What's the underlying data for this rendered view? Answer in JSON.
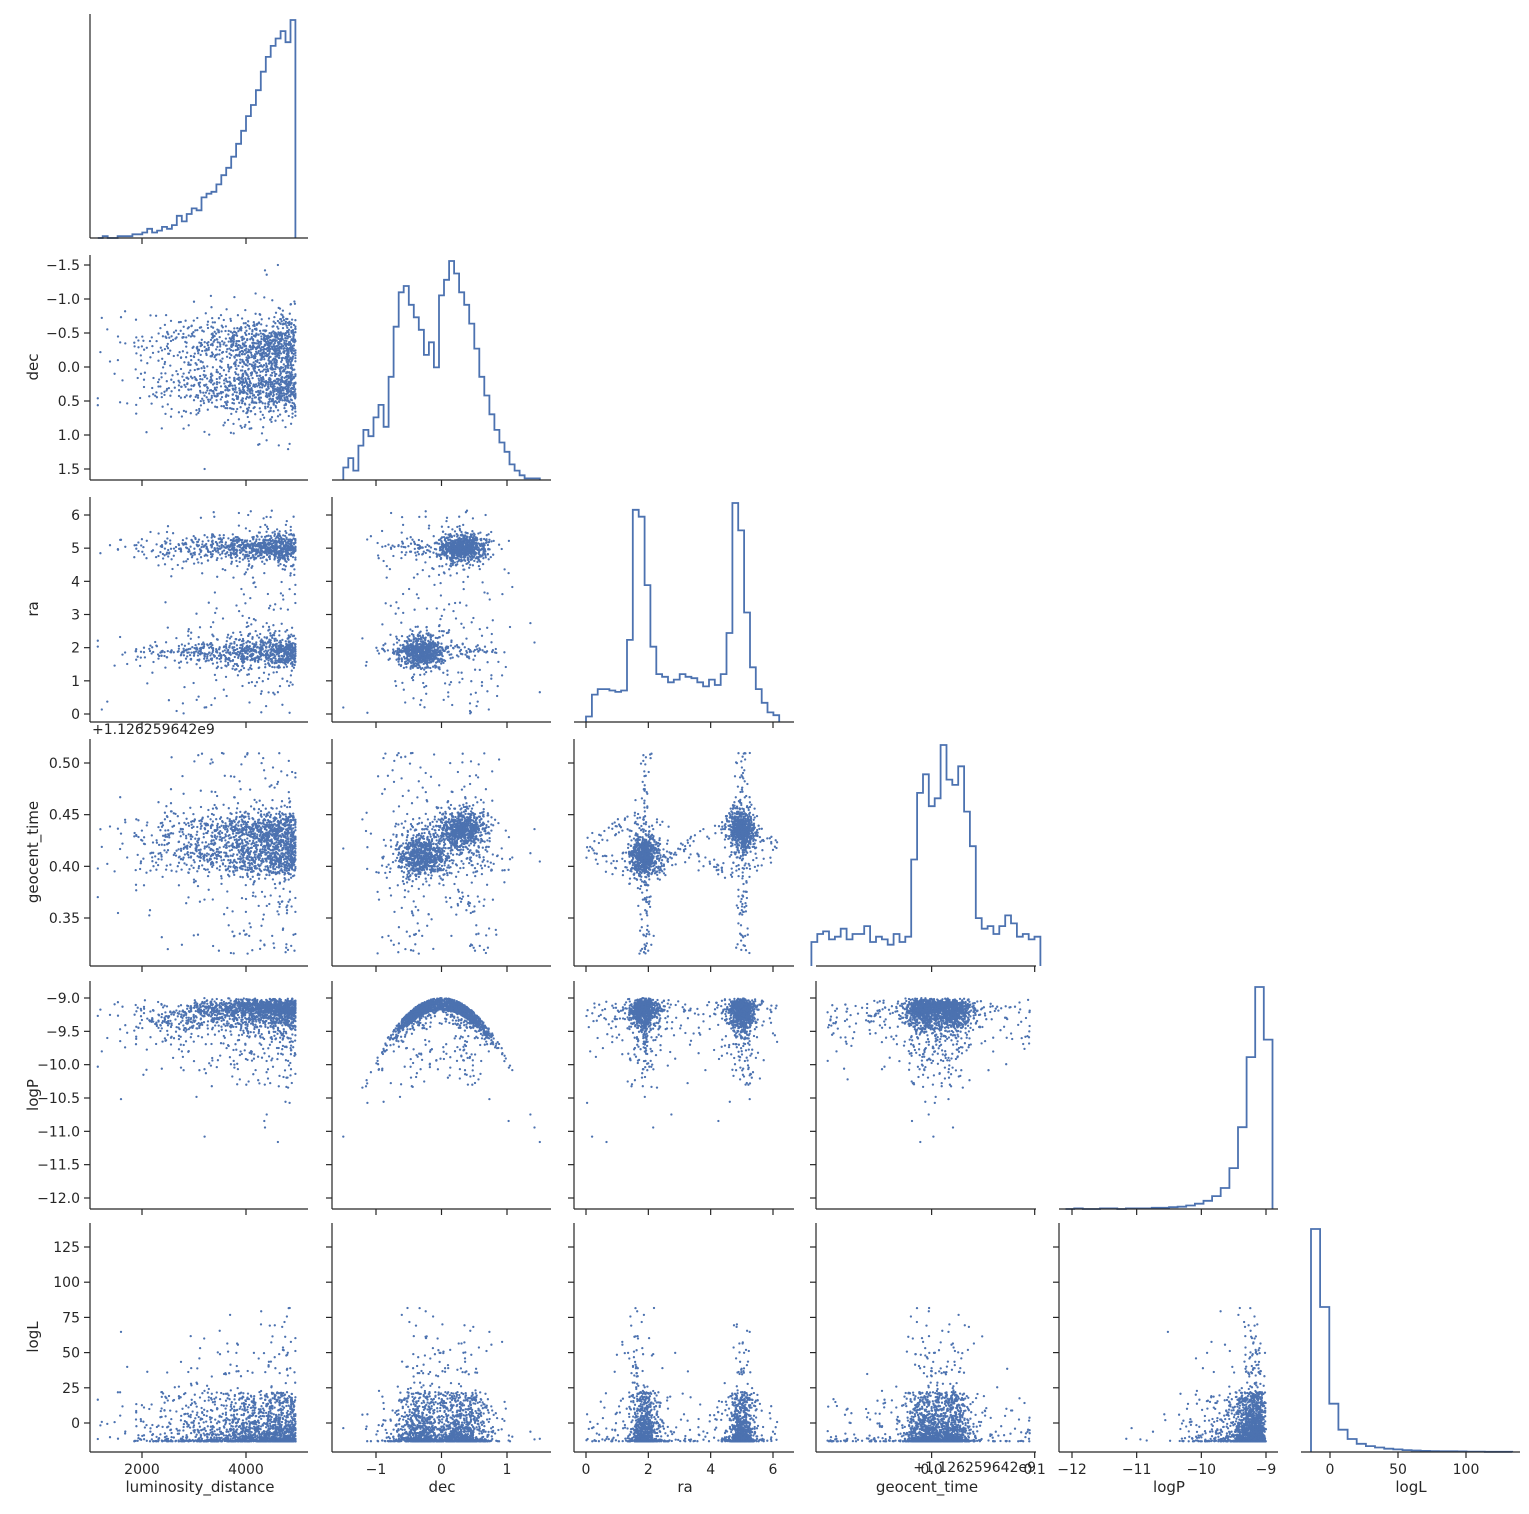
{
  "chart_data": {
    "type": "pairplot-corner",
    "style": {
      "color": "#4c72b0",
      "axis_color": "#262626"
    },
    "variables": [
      "luminosity_distance",
      "dec",
      "ra",
      "geocent_time",
      "logP",
      "logL"
    ],
    "axis_labels": {
      "luminosity_distance": "luminosity_distance",
      "dec": "dec",
      "ra": "ra",
      "geocent_time": "geocent_time",
      "logP": "logP",
      "logL": "logL"
    },
    "ranges": {
      "luminosity_distance": [
        1000,
        5100
      ],
      "dec": [
        -1.65,
        1.65
      ],
      "ra": [
        -0.3,
        6.6
      ],
      "geocent_time": [
        0.305,
        0.52
      ],
      "logP": [
        -12.15,
        -8.8
      ],
      "logL": [
        -18,
        140
      ]
    },
    "ticks": {
      "luminosity_distance": [
        2000,
        4000
      ],
      "dec": [
        -1,
        0,
        1
      ],
      "ra": [
        0,
        2,
        4,
        6
      ],
      "geocent_time": [
        0.35,
        0.4,
        0.45,
        0.5
      ],
      "logP": [
        -12,
        -11,
        -10,
        -9
      ],
      "logL": [
        0,
        25,
        50,
        75,
        100,
        125
      ]
    },
    "tick_labels": {
      "luminosity_distance": [
        "2000",
        "4000"
      ],
      "dec_x": [
        "−1",
        "0",
        "1"
      ],
      "dec_y": [
        "−1.5",
        "−1.0",
        "−0.5",
        "0.0",
        "0.5",
        "1.0",
        "1.5"
      ],
      "ra": [
        "0",
        "1",
        "2",
        "3",
        "4",
        "5",
        "6"
      ],
      "geocent_time_y": [
        "0.35",
        "0.40",
        "0.45",
        "0.50"
      ],
      "geocent_time_x": [
        "0.0",
        "0.1"
      ],
      "logP_y": [
        "−9.0",
        "−9.5",
        "−10.0",
        "−10.5",
        "−11.0",
        "−11.5",
        "−12.0"
      ],
      "logP_x": [
        "−12",
        "−11",
        "−10",
        "−9"
      ],
      "logL_y": [
        "0",
        "25",
        "50",
        "75",
        "100",
        "125"
      ],
      "logL_x": [
        "0",
        "50",
        "100"
      ]
    },
    "offset_labels": {
      "geocent_time_y": "+1.126259642e9",
      "geocent_time_x": "+1.126259642e9"
    },
    "histograms": {
      "luminosity_distance": {
        "edges_start": 1150,
        "edges_end": 4950,
        "counts": [
          0,
          1,
          0,
          0,
          1,
          1,
          1,
          2,
          2,
          3,
          5,
          3,
          4,
          6,
          5,
          7,
          12,
          9,
          13,
          16,
          15,
          22,
          24,
          25,
          29,
          34,
          38,
          44,
          51,
          58,
          66,
          72,
          80,
          90,
          98,
          104,
          108,
          112,
          106,
          118
        ]
      },
      "dec": {
        "edges_start": -1.5,
        "edges_end": 1.5,
        "counts": [
          8,
          14,
          6,
          22,
          32,
          28,
          40,
          48,
          34,
          66,
          98,
          120,
          124,
          112,
          104,
          96,
          80,
          88,
          72,
          118,
          128,
          140,
          132,
          120,
          112,
          100,
          84,
          66,
          54,
          42,
          32,
          24,
          18,
          10,
          6,
          3,
          1,
          1,
          1
        ]
      },
      "ra": {
        "edges_start": 0,
        "edges_end": 6.2,
        "counts": [
          8,
          40,
          48,
          48,
          46,
          44,
          46,
          120,
          310,
          300,
          200,
          110,
          70,
          66,
          58,
          62,
          70,
          66,
          64,
          58,
          52,
          62,
          54,
          70,
          130,
          320,
          280,
          160,
          80,
          48,
          28,
          14,
          10
        ]
      },
      "geocent_time": {
        "edges_start": 0.3,
        "edges_end": 0.52,
        "counts": [
          18,
          24,
          26,
          20,
          22,
          28,
          20,
          24,
          24,
          30,
          18,
          22,
          20,
          16,
          24,
          18,
          22,
          80,
          130,
          144,
          120,
          126,
          166,
          140,
          136,
          150,
          116,
          90,
          36,
          28,
          30,
          24,
          30,
          38,
          32,
          22,
          24,
          20,
          22
        ]
      },
      "logP": {
        "edges_start": -12.1,
        "edges_end": -8.9,
        "counts": [
          0,
          1,
          0,
          0,
          1,
          1,
          0,
          1,
          1,
          1,
          2,
          2,
          3,
          4,
          6,
          9,
          14,
          22,
          36,
          70,
          140,
          260,
          380,
          290
        ]
      },
      "logL": {
        "edges_start": -14,
        "edges_end": 134,
        "counts": [
          1200,
          780,
          260,
          120,
          70,
          44,
          32,
          24,
          18,
          14,
          10,
          8,
          6,
          5,
          4,
          4,
          3,
          2,
          2,
          1,
          1,
          1
        ]
      }
    },
    "scatter_samples": 1800
  }
}
